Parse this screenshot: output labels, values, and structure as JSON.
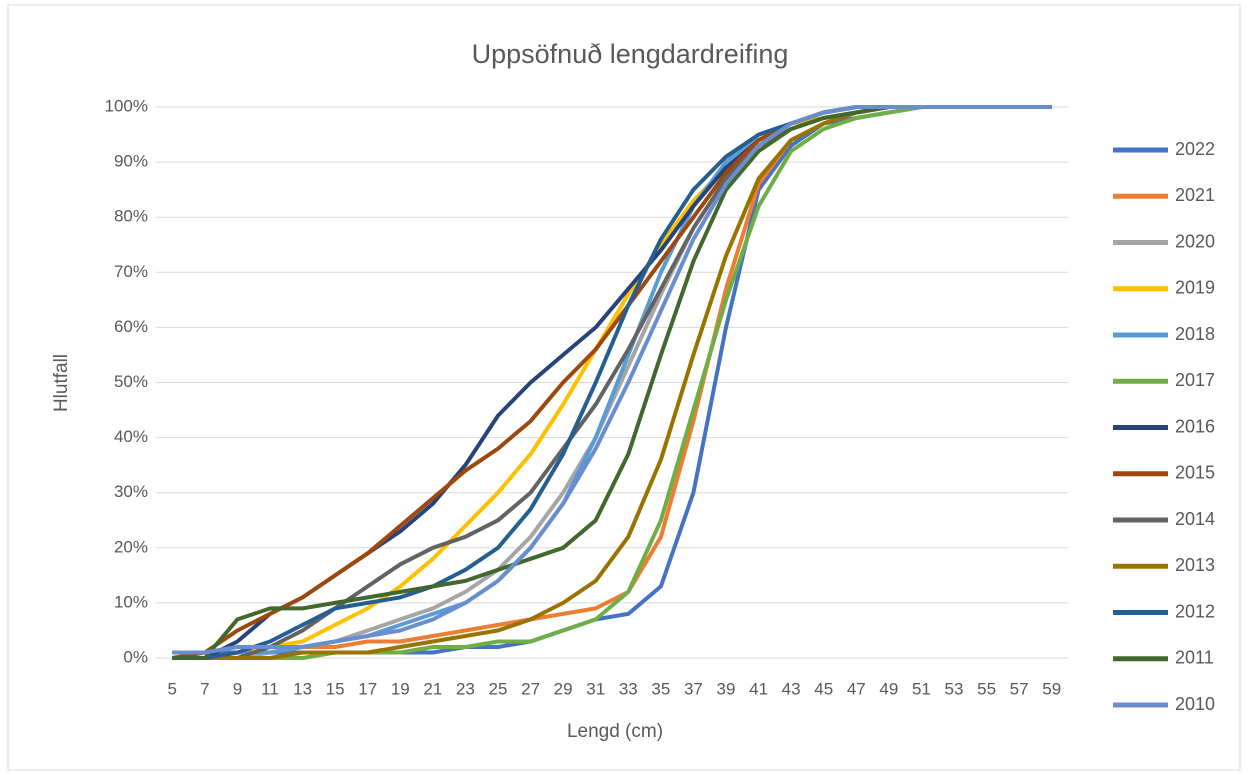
{
  "chart_data": {
    "type": "line",
    "title": "Uppsöfnuð lengdardreifing",
    "x_label": "Lengd (cm)",
    "y_label": "Hlutfall",
    "categories": [
      "5",
      "7",
      "9",
      "11",
      "13",
      "15",
      "17",
      "19",
      "21",
      "23",
      "25",
      "27",
      "29",
      "31",
      "33",
      "35",
      "37",
      "39",
      "41",
      "43",
      "45",
      "47",
      "49",
      "51",
      "53",
      "55",
      "57",
      "59"
    ],
    "ylim": [
      0,
      100
    ],
    "yticks": [
      {
        "value": 0,
        "label": "0%"
      },
      {
        "value": 10,
        "label": "10%"
      },
      {
        "value": 20,
        "label": "20%"
      },
      {
        "value": 30,
        "label": "30%"
      },
      {
        "value": 40,
        "label": "40%"
      },
      {
        "value": 50,
        "label": "50%"
      },
      {
        "value": 60,
        "label": "60%"
      },
      {
        "value": 70,
        "label": "70%"
      },
      {
        "value": 80,
        "label": "80%"
      },
      {
        "value": 90,
        "label": "90%"
      },
      {
        "value": 100,
        "label": "100%"
      }
    ],
    "grid": true,
    "legend": "right",
    "series": [
      {
        "name": "2022",
        "color": "#4472C4",
        "values": [
          1,
          1,
          1,
          1,
          1,
          1,
          1,
          1,
          1,
          2,
          2,
          3,
          5,
          7,
          8,
          13,
          30,
          60,
          85,
          93,
          97,
          98,
          99,
          100,
          100,
          100,
          100,
          100
        ]
      },
      {
        "name": "2021",
        "color": "#ED7D31",
        "values": [
          0,
          0,
          1,
          1,
          2,
          2,
          3,
          3,
          4,
          5,
          6,
          7,
          8,
          9,
          12,
          22,
          43,
          67,
          86,
          94,
          97,
          99,
          100,
          100,
          100,
          100,
          100,
          100
        ]
      },
      {
        "name": "2020",
        "color": "#A5A5A5",
        "values": [
          0,
          0,
          0,
          1,
          2,
          3,
          5,
          7,
          9,
          12,
          16,
          22,
          30,
          40,
          53,
          66,
          78,
          87,
          93,
          96,
          98,
          99,
          100,
          100,
          100,
          100,
          100,
          100
        ]
      },
      {
        "name": "2019",
        "color": "#FFC000",
        "values": [
          0,
          0,
          1,
          2,
          3,
          6,
          9,
          13,
          18,
          24,
          30,
          37,
          46,
          56,
          66,
          75,
          83,
          89,
          94,
          97,
          98,
          99,
          100,
          100,
          100,
          100,
          100,
          100
        ]
      },
      {
        "name": "2018",
        "color": "#5B9BD5",
        "values": [
          0,
          0,
          1,
          1,
          2,
          3,
          4,
          6,
          8,
          10,
          14,
          20,
          28,
          40,
          55,
          70,
          82,
          90,
          95,
          97,
          99,
          100,
          100,
          100,
          100,
          100,
          100,
          100
        ]
      },
      {
        "name": "2017",
        "color": "#70AD47",
        "values": [
          0,
          0,
          0,
          0,
          0,
          1,
          1,
          1,
          2,
          2,
          3,
          3,
          5,
          7,
          12,
          25,
          45,
          65,
          82,
          92,
          96,
          98,
          99,
          100,
          100,
          100,
          100,
          100
        ]
      },
      {
        "name": "2016",
        "color": "#264478",
        "values": [
          0,
          0,
          3,
          8,
          11,
          15,
          19,
          23,
          28,
          35,
          44,
          50,
          55,
          60,
          67,
          74,
          82,
          89,
          94,
          97,
          99,
          100,
          100,
          100,
          100,
          100,
          100,
          100
        ]
      },
      {
        "name": "2015",
        "color": "#9E480E",
        "values": [
          0,
          1,
          5,
          8,
          11,
          15,
          19,
          24,
          29,
          34,
          38,
          43,
          50,
          56,
          64,
          72,
          80,
          88,
          94,
          97,
          99,
          100,
          100,
          100,
          100,
          100,
          100,
          100
        ]
      },
      {
        "name": "2014",
        "color": "#636363",
        "values": [
          0,
          0,
          0,
          2,
          5,
          9,
          13,
          17,
          20,
          22,
          25,
          30,
          38,
          46,
          56,
          67,
          78,
          87,
          93,
          96,
          98,
          99,
          100,
          100,
          100,
          100,
          100,
          100
        ]
      },
      {
        "name": "2013",
        "color": "#997300",
        "values": [
          0,
          0,
          0,
          0,
          1,
          1,
          1,
          2,
          3,
          4,
          5,
          7,
          10,
          14,
          22,
          36,
          55,
          73,
          87,
          94,
          97,
          99,
          100,
          100,
          100,
          100,
          100,
          100
        ]
      },
      {
        "name": "2012",
        "color": "#255E91",
        "values": [
          0,
          0,
          1,
          3,
          6,
          9,
          10,
          11,
          13,
          16,
          20,
          27,
          37,
          50,
          64,
          76,
          85,
          91,
          95,
          97,
          99,
          100,
          100,
          100,
          100,
          100,
          100,
          100
        ]
      },
      {
        "name": "2011",
        "color": "#43682B",
        "values": [
          0,
          0,
          7,
          9,
          9,
          10,
          11,
          12,
          13,
          14,
          16,
          18,
          20,
          25,
          37,
          55,
          72,
          85,
          92,
          96,
          98,
          99,
          100,
          100,
          100,
          100,
          100,
          100
        ]
      },
      {
        "name": "2010",
        "color": "#698ED0",
        "values": [
          1,
          1,
          2,
          2,
          2,
          3,
          4,
          5,
          7,
          10,
          14,
          20,
          28,
          38,
          50,
          63,
          76,
          86,
          93,
          97,
          99,
          100,
          100,
          100,
          100,
          100,
          100,
          100
        ]
      }
    ]
  }
}
